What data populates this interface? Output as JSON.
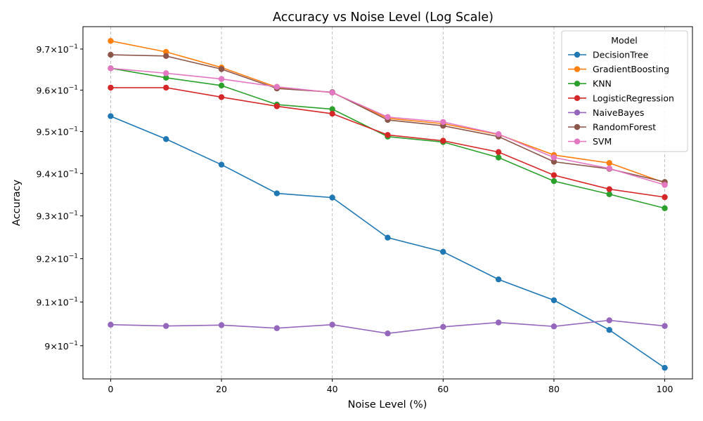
{
  "chart_data": {
    "type": "line",
    "title": "Accuracy vs Noise Level (Log Scale)",
    "xlabel": "Noise Level (%)",
    "ylabel": "Accuracy",
    "x": [
      0,
      10,
      20,
      30,
      40,
      50,
      60,
      70,
      80,
      90,
      100
    ],
    "xlim": [
      -5,
      105
    ],
    "ylim": [
      0.8925,
      0.9755
    ],
    "yscale": "log",
    "xticks": [
      0,
      20,
      40,
      60,
      80,
      100
    ],
    "xtick_labels": [
      "0",
      "20",
      "40",
      "60",
      "80",
      "100"
    ],
    "yticks": [
      {
        "value": 0.9,
        "mant": "9",
        "exp": "−1"
      },
      {
        "value": 0.91,
        "mant": "9.1",
        "exp": "−1"
      },
      {
        "value": 0.92,
        "mant": "9.2",
        "exp": "−1"
      },
      {
        "value": 0.93,
        "mant": "9.3",
        "exp": "−1"
      },
      {
        "value": 0.94,
        "mant": "9.4",
        "exp": "−1"
      },
      {
        "value": 0.95,
        "mant": "9.5",
        "exp": "−1"
      },
      {
        "value": 0.96,
        "mant": "9.6",
        "exp": "−1"
      },
      {
        "value": 0.97,
        "mant": "9.7",
        "exp": "−1"
      }
    ],
    "grid": "vertical dashed",
    "legend_title": "Model",
    "legend_position": "top-right",
    "series": [
      {
        "name": "DecisionTree",
        "color": "#1f77b4",
        "values": [
          0.9537,
          0.9482,
          0.9421,
          0.9353,
          0.9343,
          0.9249,
          0.9216,
          0.9152,
          0.9104,
          0.9036,
          0.895
        ]
      },
      {
        "name": "GradientBoosting",
        "color": "#ff7f0e",
        "values": [
          0.972,
          0.9693,
          0.9655,
          0.9607,
          0.9594,
          0.9532,
          0.9519,
          0.9493,
          0.9444,
          0.9425,
          0.9378
        ]
      },
      {
        "name": "KNN",
        "color": "#2ca02c",
        "values": [
          0.9653,
          0.963,
          0.9611,
          0.9565,
          0.9554,
          0.9488,
          0.9475,
          0.9438,
          0.9382,
          0.9351,
          0.9318
        ]
      },
      {
        "name": "LogisticRegression",
        "color": "#d62728",
        "values": [
          0.9606,
          0.9606,
          0.9583,
          0.9561,
          0.9543,
          0.9492,
          0.9478,
          0.9451,
          0.9396,
          0.9363,
          0.9344
        ]
      },
      {
        "name": "NaiveBayes",
        "color": "#9467bd",
        "values": [
          0.9048,
          0.9045,
          0.9047,
          0.904,
          0.9048,
          0.9028,
          0.9043,
          0.9053,
          0.9044,
          0.9058,
          0.9045
        ]
      },
      {
        "name": "RandomForest",
        "color": "#8c564b",
        "values": [
          0.9686,
          0.9683,
          0.9651,
          0.9604,
          0.9595,
          0.9528,
          0.9514,
          0.9488,
          0.9428,
          0.9411,
          0.938
        ]
      },
      {
        "name": "SVM",
        "color": "#e377c2",
        "values": [
          0.9653,
          0.9641,
          0.9627,
          0.9608,
          0.9594,
          0.9535,
          0.9523,
          0.9494,
          0.9438,
          0.9412,
          0.9373
        ]
      }
    ]
  }
}
